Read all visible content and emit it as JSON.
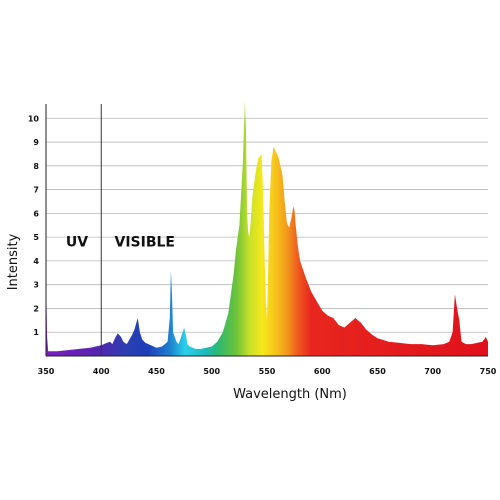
{
  "chart_data": {
    "type": "area",
    "title": "",
    "xlabel": "Wavelength (Nm)",
    "ylabel": "Intensity",
    "xlim": [
      350,
      750
    ],
    "ylim": [
      0,
      10.6
    ],
    "x_ticks": [
      350,
      400,
      450,
      500,
      550,
      600,
      650,
      700,
      750
    ],
    "y_ticks": [
      1,
      2,
      3,
      4,
      5,
      6,
      7,
      8,
      9,
      10
    ],
    "grid": true,
    "annotations": [
      {
        "text": "UV",
        "x": 368,
        "y": 4.6
      },
      {
        "text": "VISIBLE",
        "x": 412,
        "y": 4.6
      }
    ],
    "divider_x": 400,
    "series": [
      {
        "x": [
          350,
          351,
          352,
          355,
          360,
          370,
          380,
          390,
          400,
          405,
          408,
          410,
          413,
          415,
          418,
          420,
          423,
          425,
          428,
          430,
          433,
          435,
          437,
          440,
          445,
          450,
          455,
          460,
          462,
          463,
          464,
          465,
          468,
          470,
          473,
          475,
          477,
          478,
          480,
          483,
          485,
          490,
          495,
          500,
          505,
          510,
          515,
          520,
          522,
          525,
          528,
          530,
          531,
          532,
          533,
          534,
          535,
          537,
          540,
          542,
          545,
          546,
          547,
          548,
          549,
          550,
          551,
          552,
          554,
          556,
          558,
          560,
          562,
          564,
          566,
          568,
          570,
          572,
          574,
          575,
          576,
          578,
          580,
          585,
          590,
          595,
          600,
          605,
          610,
          615,
          620,
          625,
          630,
          635,
          640,
          645,
          650,
          660,
          670,
          680,
          690,
          700,
          710,
          715,
          718,
          720,
          722,
          724,
          726,
          730,
          735,
          740,
          745,
          748,
          750
        ],
        "y": [
          3.5,
          0.8,
          0.2,
          0.2,
          0.2,
          0.25,
          0.3,
          0.35,
          0.45,
          0.55,
          0.6,
          0.5,
          0.8,
          0.95,
          0.8,
          0.6,
          0.5,
          0.65,
          0.9,
          1.1,
          1.6,
          1.0,
          0.7,
          0.55,
          0.45,
          0.35,
          0.4,
          0.6,
          1.6,
          3.6,
          2.6,
          1.0,
          0.6,
          0.5,
          0.9,
          1.2,
          0.8,
          0.5,
          0.4,
          0.35,
          0.3,
          0.3,
          0.35,
          0.4,
          0.6,
          1.0,
          1.8,
          3.5,
          4.5,
          5.5,
          8.0,
          10.7,
          9.5,
          6.0,
          5.2,
          5.0,
          5.5,
          6.8,
          7.8,
          8.3,
          8.5,
          7.5,
          5.8,
          3.8,
          2.4,
          1.5,
          3.5,
          6.0,
          8.2,
          8.8,
          8.6,
          8.4,
          8.0,
          7.6,
          6.5,
          5.6,
          5.4,
          5.8,
          6.3,
          6.1,
          5.5,
          4.6,
          4.0,
          3.3,
          2.7,
          2.3,
          1.9,
          1.7,
          1.6,
          1.3,
          1.2,
          1.4,
          1.6,
          1.4,
          1.1,
          0.9,
          0.75,
          0.6,
          0.55,
          0.5,
          0.5,
          0.45,
          0.5,
          0.6,
          1.0,
          2.6,
          2.0,
          1.5,
          0.6,
          0.5,
          0.5,
          0.55,
          0.6,
          0.8,
          0.6
        ]
      }
    ]
  }
}
